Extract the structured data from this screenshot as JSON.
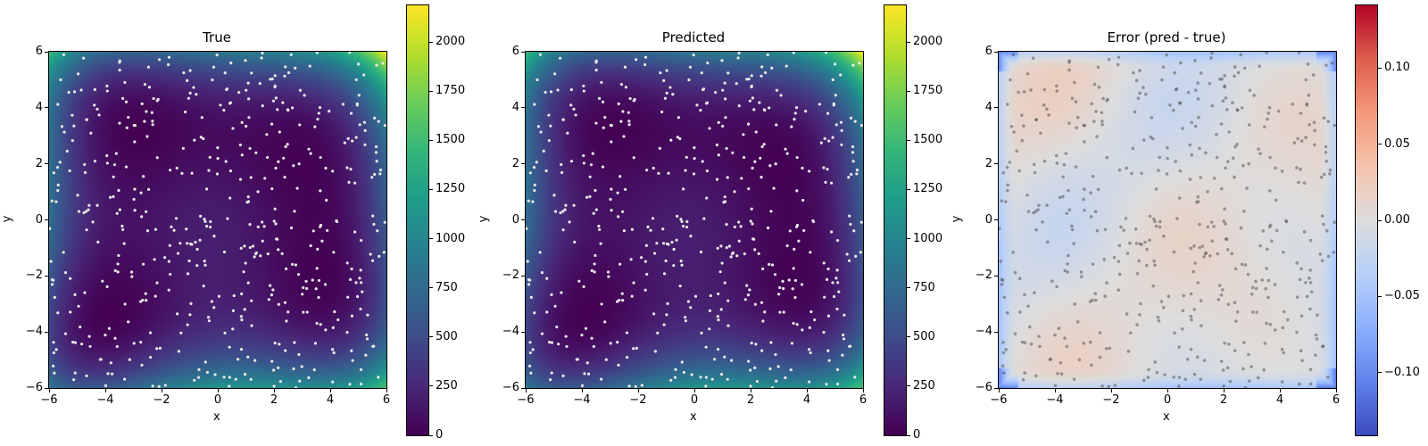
{
  "chart_data": [
    {
      "type": "heatmap",
      "title": "True",
      "xlabel": "x",
      "ylabel": "y",
      "xlim": [
        -6,
        6
      ],
      "ylim": [
        -6,
        6
      ],
      "xticks": [
        "−6",
        "−4",
        "−2",
        "0",
        "2",
        "4",
        "6"
      ],
      "yticks": [
        "−6",
        "−4",
        "−2",
        "0",
        "2",
        "4",
        "6"
      ],
      "colormap": "viridis",
      "clim": [
        0,
        2186
      ],
      "colorbar_ticks": [
        "0",
        "250",
        "500",
        "750",
        "1000",
        "1250",
        "1500",
        "1750",
        "2000"
      ],
      "scatter_color": "#e8e8e8",
      "grid": false
    },
    {
      "type": "heatmap",
      "title": "Predicted",
      "xlabel": "x",
      "ylabel": "y",
      "xlim": [
        -6,
        6
      ],
      "ylim": [
        -6,
        6
      ],
      "xticks": [
        "−6",
        "−4",
        "−2",
        "0",
        "2",
        "4",
        "6"
      ],
      "yticks": [
        "−6",
        "−4",
        "−2",
        "0",
        "2",
        "4",
        "6"
      ],
      "colormap": "viridis",
      "clim": [
        0,
        2186
      ],
      "colorbar_ticks": [
        "0",
        "250",
        "500",
        "750",
        "1000",
        "1250",
        "1500",
        "1750",
        "2000"
      ],
      "scatter_color": "#e8e8e8",
      "grid": false
    },
    {
      "type": "heatmap",
      "title": "Error (pred - true)",
      "xlabel": "x",
      "ylabel": "y",
      "xlim": [
        -6,
        6
      ],
      "ylim": [
        -6,
        6
      ],
      "xticks": [
        "−6",
        "−4",
        "−2",
        "0",
        "2",
        "4",
        "6"
      ],
      "yticks": [
        "−6",
        "−4",
        "−2",
        "0",
        "2",
        "4",
        "6"
      ],
      "colormap": "coolwarm",
      "clim": [
        -0.141,
        0.141
      ],
      "colorbar_ticks": [
        "−0.10",
        "−0.05",
        "0.00",
        "0.05",
        "0.10"
      ],
      "scatter_color": "#555555",
      "grid": false
    }
  ]
}
